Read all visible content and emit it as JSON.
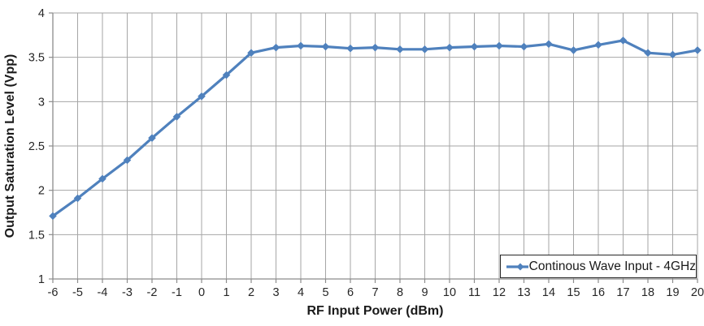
{
  "chart_data": {
    "type": "line",
    "xlabel": "RF Input Power (dBm)",
    "ylabel": "Output Saturation Level (Vpp)",
    "x": [
      -6,
      -5,
      -4,
      -3,
      -2,
      -1,
      0,
      1,
      2,
      3,
      4,
      5,
      6,
      7,
      8,
      9,
      10,
      11,
      12,
      13,
      14,
      15,
      16,
      17,
      18,
      19,
      20
    ],
    "series": [
      {
        "name": "Continous Wave Input - 4GHz",
        "values": [
          1.71,
          1.91,
          2.13,
          2.34,
          2.59,
          2.83,
          3.06,
          3.3,
          3.55,
          3.61,
          3.63,
          3.62,
          3.6,
          3.61,
          3.59,
          3.59,
          3.61,
          3.62,
          3.63,
          3.62,
          3.65,
          3.58,
          3.64,
          3.69,
          3.55,
          3.53,
          3.58
        ]
      }
    ],
    "xlim": [
      -6,
      20
    ],
    "ylim": [
      1,
      4
    ],
    "x_tick_step": 1,
    "y_tick_step": 0.5,
    "x_tick_labels": [
      "-6",
      "-5",
      "-4",
      "-3",
      "-2",
      "-1",
      "0",
      "1",
      "2",
      "3",
      "4",
      "5",
      "6",
      "7",
      "8",
      "9",
      "10",
      "11",
      "12",
      "13",
      "14",
      "15",
      "16",
      "17",
      "18",
      "19",
      "20"
    ],
    "y_tick_labels": [
      "1",
      "1.5",
      "2",
      "2.5",
      "3",
      "3.5",
      "4"
    ],
    "grid": true,
    "legend_position": "bottom-right",
    "colors": {
      "series": "#4F81BD",
      "gridline": "#A6A6A6",
      "axis": "#8C8C8C",
      "tick_text": "#262626",
      "axis_title_text": "#1A1A1A",
      "legend_border": "#262626",
      "background": "#FFFFFF"
    }
  }
}
